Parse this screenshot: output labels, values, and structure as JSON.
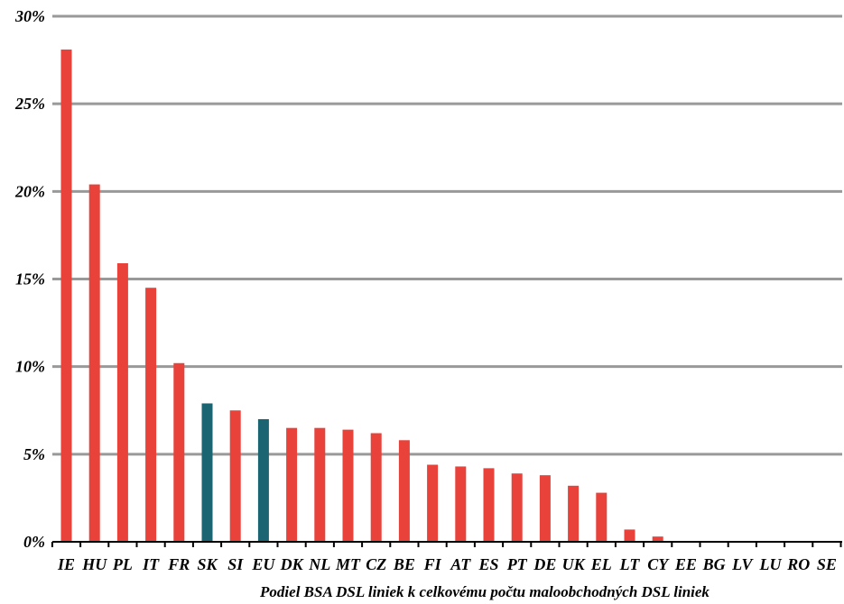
{
  "chart_data": {
    "type": "bar",
    "categories": [
      "IE",
      "HU",
      "PL",
      "IT",
      "FR",
      "SK",
      "SI",
      "EU",
      "DK",
      "NL",
      "MT",
      "CZ",
      "BE",
      "FI",
      "AT",
      "ES",
      "PT",
      "DE",
      "UK",
      "EL",
      "LT",
      "CY",
      "EE",
      "BG",
      "LV",
      "LU",
      "RO",
      "SE"
    ],
    "values": [
      28.1,
      20.4,
      15.9,
      14.5,
      10.2,
      7.9,
      7.5,
      7.0,
      6.5,
      6.5,
      6.4,
      6.2,
      5.8,
      4.4,
      4.3,
      4.2,
      3.9,
      3.8,
      3.2,
      2.8,
      0.7,
      0.3,
      0.05,
      0,
      0,
      0,
      0,
      0
    ],
    "highlight": [
      "SK",
      "EU"
    ],
    "colors": {
      "default": "#e8423a",
      "highlight": "#1b6472",
      "grid": "#999999",
      "axis": "#000000"
    },
    "xlabel": "Podiel BSA DSL liniek k celkovému počtu maloobchodných DSL liniek",
    "ylabel": "",
    "ylim": [
      0,
      30
    ],
    "yticks": [
      0,
      5,
      10,
      15,
      20,
      25,
      30
    ],
    "ytick_labels": [
      "0%",
      "5%",
      "10%",
      "15%",
      "20%",
      "25%",
      "30%"
    ],
    "grid": true,
    "legend": "none"
  }
}
